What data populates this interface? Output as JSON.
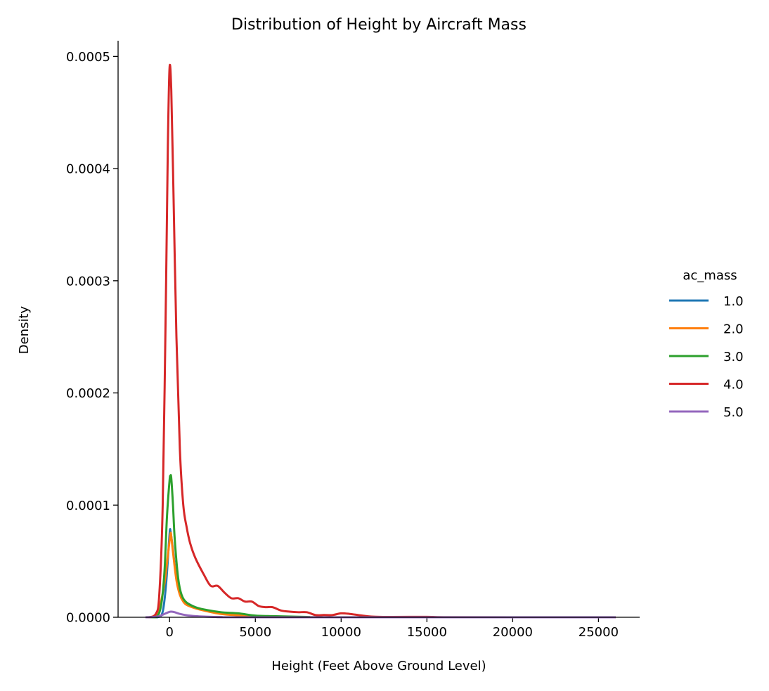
{
  "chart_data": {
    "type": "line",
    "title": "Distribution of Height by Aircraft Mass",
    "xlabel": "Height (Feet Above Ground Level)",
    "ylabel": "Density",
    "xlim": [
      -3000,
      27400
    ],
    "ylim": [
      0,
      0.000514
    ],
    "xticks": [
      0,
      5000,
      10000,
      15000,
      20000,
      25000
    ],
    "xtick_labels": [
      "0",
      "5000",
      "10000",
      "15000",
      "20000",
      "25000"
    ],
    "yticks": [
      0,
      0.0001,
      0.0002,
      0.0003,
      0.0004,
      0.0005
    ],
    "ytick_labels": [
      "0.0000",
      "0.0001",
      "0.0002",
      "0.0003",
      "0.0004",
      "0.0005"
    ],
    "grid": false,
    "legend": {
      "title": "ac_mass",
      "placement": "right"
    },
    "series": [
      {
        "name": "1.0",
        "color": "#1f77b4",
        "x": [
          -1400,
          -700,
          -400,
          -200,
          0,
          50,
          100,
          200,
          400,
          600,
          800,
          1000,
          1500,
          2000,
          3000,
          4000,
          5000,
          7000,
          10000,
          26000
        ],
        "y": [
          0,
          0,
          5e-06,
          3e-05,
          7.4e-05,
          7.7e-05,
          7.2e-05,
          6e-05,
          3.5e-05,
          2.2e-05,
          1.6e-05,
          1.3e-05,
          9e-06,
          6.5e-06,
          3.5e-06,
          2e-06,
          1e-06,
          2e-07,
          0,
          0
        ]
      },
      {
        "name": "2.0",
        "color": "#ff7f0e",
        "x": [
          -1400,
          -900,
          -600,
          -300,
          -100,
          50,
          100,
          200,
          400,
          600,
          800,
          1000,
          1500,
          2000,
          3000,
          4000,
          5000,
          7000,
          10000,
          26000
        ],
        "y": [
          0,
          0,
          8e-06,
          3e-05,
          5.5e-05,
          7.4e-05,
          7.2e-05,
          5.8e-05,
          3.3e-05,
          2e-05,
          1.4e-05,
          1.1e-05,
          8e-06,
          6e-06,
          3e-06,
          1.8e-06,
          1e-06,
          2e-07,
          0,
          0
        ]
      },
      {
        "name": "3.0",
        "color": "#2ca02c",
        "x": [
          -1400,
          -800,
          -500,
          -300,
          -150,
          0,
          50,
          100,
          200,
          300,
          500,
          700,
          1000,
          1500,
          2000,
          3000,
          4000,
          5000,
          6000,
          8000,
          10000,
          26000
        ],
        "y": [
          0,
          0,
          1e-05,
          4e-05,
          9e-05,
          0.000122,
          0.000126,
          0.000124,
          0.0001,
          7e-05,
          3.5e-05,
          2e-05,
          1.3e-05,
          9e-06,
          7e-06,
          4.5e-06,
          3.5e-06,
          1.5e-06,
          1e-06,
          3e-07,
          0,
          0
        ]
      },
      {
        "name": "4.0",
        "color": "#d62728",
        "x": [
          -1400,
          -1200,
          -800,
          -600,
          -400,
          -200,
          -100,
          0,
          100,
          200,
          400,
          600,
          800,
          1000,
          1200,
          1500,
          2000,
          2400,
          2800,
          3200,
          3600,
          4000,
          4400,
          4800,
          5200,
          5600,
          6000,
          6500,
          7000,
          7500,
          8000,
          8500,
          9000,
          9500,
          10000,
          10500,
          11000,
          11500,
          12000,
          13000,
          15000,
          16000,
          20000,
          26000
        ],
        "y": [
          0,
          0,
          3e-06,
          2e-05,
          0.0001,
          0.0003,
          0.00042,
          0.00049,
          0.00047,
          0.0004,
          0.00025,
          0.00015,
          0.0001,
          8e-05,
          6.6e-05,
          5.3e-05,
          3.8e-05,
          2.8e-05,
          2.8e-05,
          2.2e-05,
          1.7e-05,
          1.7e-05,
          1.4e-05,
          1.4e-05,
          1e-05,
          9e-06,
          9e-06,
          6e-06,
          5e-06,
          4.5e-06,
          4.5e-06,
          2e-06,
          2e-06,
          2e-06,
          3.5e-06,
          3e-06,
          2e-06,
          1e-06,
          5e-07,
          3e-07,
          4e-07,
          1e-07,
          0,
          0
        ]
      },
      {
        "name": "5.0",
        "color": "#9467bd",
        "x": [
          -1400,
          -1000,
          -600,
          -300,
          0,
          100,
          300,
          600,
          1000,
          1500,
          2000,
          3000,
          5000,
          26000
        ],
        "y": [
          0,
          2e-07,
          1e-06,
          3e-06,
          4.8e-06,
          5e-06,
          4.5e-06,
          3e-06,
          1.8e-06,
          1e-06,
          6e-07,
          2e-07,
          0,
          0
        ]
      }
    ]
  }
}
